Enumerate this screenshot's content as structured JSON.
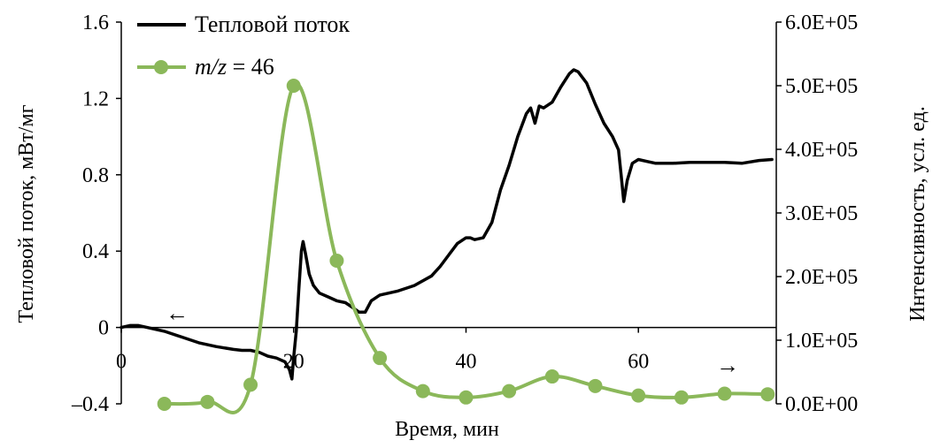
{
  "chart_data": {
    "type": "line",
    "xlabel": "Время, мин",
    "ylabel_left": "Тепловой поток, мВт/мг",
    "ylabel_right": "Интенсивность, усл. ед.",
    "xlim": [
      0,
      76
    ],
    "ylim_left": [
      -0.4,
      1.6
    ],
    "ylim_right": [
      0,
      600000
    ],
    "x_ticks": [
      "0",
      "20",
      "40",
      "60"
    ],
    "y_left_ticks": [
      "–0.4",
      "0",
      "0.4",
      "0.8",
      "1.2",
      "1.6"
    ],
    "y_right_ticks": [
      "0.0E+00",
      "1.0E+05",
      "2.0E+05",
      "3.0E+05",
      "4.0E+05",
      "5.0E+05",
      "6.0E+05"
    ],
    "legend": {
      "position": "top-left",
      "heat_label": "Тепловой поток",
      "mz_label_italic": "m/z",
      "mz_label_rest": " = 46"
    },
    "arrows": {
      "left": "←",
      "right": "→"
    },
    "colors": {
      "heat": "#000000",
      "mz": "#8bb85a"
    },
    "series": [
      {
        "name": "Тепловой поток",
        "axis": "left",
        "color": "#000000",
        "x": [
          0,
          1,
          2,
          3,
          5,
          7,
          9,
          11,
          13,
          14,
          15,
          16,
          17,
          18,
          19,
          19.5,
          19.8,
          20,
          20.3,
          20.6,
          20.9,
          21.1,
          21.4,
          21.8,
          22.3,
          23,
          24,
          25,
          26,
          27,
          27.6,
          28.3,
          29,
          30,
          32,
          34,
          36,
          37,
          38,
          39,
          40,
          40.5,
          41,
          42,
          43,
          44,
          45,
          46,
          47,
          47.5,
          48,
          48.5,
          49,
          50,
          51,
          52,
          52.5,
          53,
          54,
          55,
          56,
          57,
          57.7,
          58,
          58.3,
          58.7,
          59.3,
          60,
          61,
          62,
          64,
          66,
          68,
          70,
          72,
          74,
          75.5
        ],
        "y": [
          0,
          0.01,
          0.01,
          0.0,
          -0.02,
          -0.05,
          -0.08,
          -0.1,
          -0.115,
          -0.12,
          -0.12,
          -0.13,
          -0.15,
          -0.16,
          -0.18,
          -0.22,
          -0.27,
          -0.16,
          -0.02,
          0.2,
          0.4,
          0.45,
          0.38,
          0.28,
          0.22,
          0.18,
          0.16,
          0.14,
          0.13,
          0.1,
          0.08,
          0.08,
          0.14,
          0.17,
          0.19,
          0.22,
          0.27,
          0.32,
          0.38,
          0.44,
          0.47,
          0.47,
          0.46,
          0.47,
          0.55,
          0.72,
          0.85,
          1.0,
          1.12,
          1.15,
          1.07,
          1.16,
          1.15,
          1.18,
          1.26,
          1.33,
          1.35,
          1.34,
          1.28,
          1.17,
          1.07,
          1.0,
          0.93,
          0.8,
          0.66,
          0.77,
          0.86,
          0.88,
          0.87,
          0.86,
          0.86,
          0.865,
          0.865,
          0.865,
          0.86,
          0.875,
          0.88
        ]
      },
      {
        "name": "m/z = 46",
        "axis": "right",
        "color": "#8bb85a",
        "x": [
          5,
          10,
          15,
          20,
          25,
          30,
          35,
          40,
          45,
          50,
          55,
          60,
          65,
          70,
          75
        ],
        "y": [
          0,
          3000,
          30000,
          500000,
          225000,
          72000,
          20000,
          10000,
          20000,
          43000,
          28000,
          13000,
          10000,
          16000,
          15000
        ]
      }
    ]
  }
}
